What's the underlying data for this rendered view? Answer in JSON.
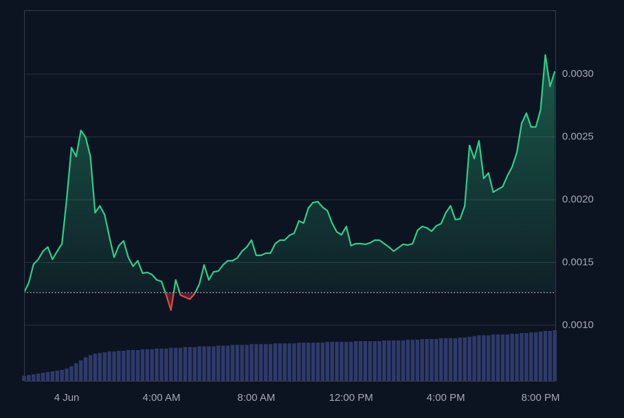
{
  "chart_data": {
    "type": "baseline-line",
    "x": [
      -1.8,
      -1.6,
      -1.4,
      -1.2,
      -1,
      -0.8,
      -0.6,
      -0.4,
      -0.2,
      0,
      0.2,
      0.4,
      0.6,
      0.8,
      1,
      1.2,
      1.4,
      1.6,
      1.8,
      2,
      2.2,
      2.4,
      2.6,
      2.8,
      3,
      3.2,
      3.4,
      3.6,
      3.8,
      4,
      4.2,
      4.4,
      4.6,
      4.8,
      5,
      5.2,
      5.4,
      5.6,
      5.8,
      6,
      6.2,
      6.4,
      6.6,
      6.8,
      7,
      7.2,
      7.4,
      7.6,
      7.8,
      8,
      8.2,
      8.4,
      8.6,
      8.8,
      9,
      9.2,
      9.4,
      9.6,
      9.8,
      10,
      10.2,
      10.4,
      10.6,
      10.8,
      11,
      11.2,
      11.4,
      11.6,
      11.8,
      12,
      12.2,
      12.4,
      12.6,
      12.8,
      13,
      13.2,
      13.4,
      13.6,
      13.8,
      14,
      14.2,
      14.4,
      14.6,
      14.8,
      15,
      15.2,
      15.4,
      15.6,
      15.8,
      16,
      16.2,
      16.4,
      16.6,
      16.8,
      17,
      17.2,
      17.4,
      17.6,
      17.8,
      18,
      18.2,
      18.4,
      18.6,
      18.8,
      19,
      19.2,
      19.4,
      19.6,
      19.8,
      20,
      20.2,
      20.4,
      20.6
    ],
    "series": [
      {
        "color": "#2fcf8d",
        "down_color": "#e5484d",
        "values": [
          0.00126,
          0.001339,
          0.001486,
          0.001525,
          0.00159,
          0.001623,
          0.001525,
          0.00159,
          0.00165,
          0.002005,
          0.002415,
          0.002344,
          0.002552,
          0.002497,
          0.002344,
          0.001896,
          0.001951,
          0.00188,
          0.001705,
          0.001541,
          0.001634,
          0.001672,
          0.001541,
          0.00147,
          0.001514,
          0.001415,
          0.001421,
          0.001404,
          0.001361,
          0.00135,
          0.00124,
          0.00112,
          0.001361,
          0.00124,
          0.001224,
          0.001208,
          0.001251,
          0.001328,
          0.001481,
          0.001361,
          0.001426,
          0.001432,
          0.001481,
          0.001514,
          0.001514,
          0.001536,
          0.00159,
          0.001623,
          0.001678,
          0.001557,
          0.001557,
          0.001574,
          0.001574,
          0.00165,
          0.001678,
          0.001678,
          0.001716,
          0.001732,
          0.001831,
          0.001814,
          0.001934,
          0.001978,
          0.001984,
          0.00194,
          0.001913,
          0.001814,
          0.001743,
          0.001721,
          0.001787,
          0.001634,
          0.00165,
          0.00165,
          0.001645,
          0.001656,
          0.001678,
          0.001678,
          0.00165,
          0.001623,
          0.00159,
          0.001617,
          0.001645,
          0.001639,
          0.00165,
          0.001754,
          0.001787,
          0.001776,
          0.001749,
          0.001792,
          0.001809,
          0.001896,
          0.001951,
          0.001842,
          0.001847,
          0.001951,
          0.002432,
          0.002328,
          0.00247,
          0.002169,
          0.002213,
          0.00206,
          0.002082,
          0.002104,
          0.002191,
          0.002262,
          0.002377,
          0.002607,
          0.002689,
          0.002579,
          0.002579,
          0.002716,
          0.003153,
          0.002902,
          0.003022
        ]
      }
    ],
    "baseline": 0.00126,
    "volume": {
      "color": "#2f3a6b",
      "values": [
        7,
        8,
        9,
        10,
        11,
        12,
        13,
        14,
        15,
        17,
        20,
        24,
        28,
        32,
        35,
        37,
        38,
        39,
        40,
        40,
        41,
        41,
        42,
        42,
        42,
        43,
        43,
        43,
        44,
        44,
        44,
        45,
        45,
        45,
        46,
        46,
        46,
        47,
        47,
        47,
        47,
        48,
        48,
        48,
        49,
        49,
        49,
        49,
        50,
        50,
        50,
        50,
        50,
        51,
        51,
        51,
        51,
        51,
        52,
        52,
        52,
        52,
        52,
        52,
        53,
        53,
        53,
        53,
        53,
        53,
        54,
        54,
        54,
        54,
        54,
        54,
        55,
        55,
        55,
        55,
        55,
        56,
        56,
        56,
        57,
        57,
        57,
        57,
        58,
        58,
        58,
        58,
        59,
        59,
        60,
        61,
        62,
        62,
        62,
        63,
        63,
        63,
        63,
        64,
        64,
        65,
        65,
        66,
        66,
        67,
        68,
        68,
        69
      ]
    },
    "xlim": [
      -1.8,
      20.62
    ],
    "ylim": [
      0.000557,
      0.003508
    ],
    "xticks": [
      {
        "value": 0,
        "label": "4 Jun"
      },
      {
        "value": 4,
        "label": "4:00 AM"
      },
      {
        "value": 8,
        "label": "8:00 AM"
      },
      {
        "value": 12,
        "label": "12:00 PM"
      },
      {
        "value": 16,
        "label": "4:00 PM"
      },
      {
        "value": 20,
        "label": "8:00 PM"
      }
    ],
    "yticks": [
      {
        "value": 0.001,
        "label": "0.0010"
      },
      0.0015,
      {
        "value": 0.002,
        "label": "0.0020"
      },
      0.0025,
      {
        "value": 0.003,
        "label": "0.0030"
      }
    ],
    "grid": true
  }
}
